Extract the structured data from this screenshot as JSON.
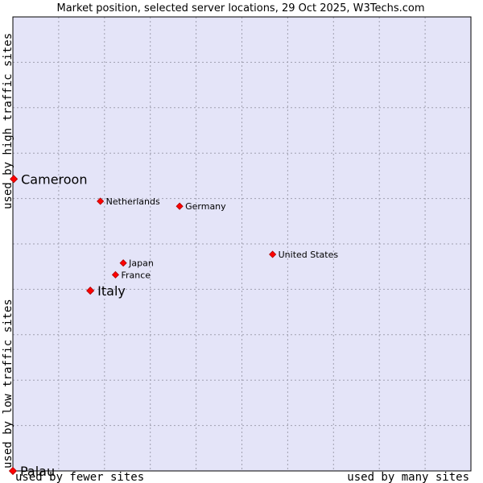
{
  "chart_data": {
    "type": "scatter",
    "title": "Market position, selected server locations, 29 Oct 2025, W3Techs.com",
    "xlabel_left": "used by fewer sites",
    "xlabel_right": "used by many sites",
    "ylabel_bottom": "used by low traffic sites",
    "ylabel_top": "used by high traffic sites",
    "xlim": [
      0,
      100
    ],
    "ylim": [
      0,
      100
    ],
    "grid": true,
    "colors": {
      "plot_bg": "#e4e4f8",
      "point": "#ff0000",
      "point_stroke": "#aa0000",
      "border": "#000000"
    },
    "points": [
      {
        "label": "Cameroon",
        "x": 0.2,
        "y": 64.3,
        "size": "large"
      },
      {
        "label": "Netherlands",
        "x": 19.1,
        "y": 59.4,
        "size": "small"
      },
      {
        "label": "Germany",
        "x": 36.4,
        "y": 58.3,
        "size": "small"
      },
      {
        "label": "United States",
        "x": 56.7,
        "y": 47.7,
        "size": "small"
      },
      {
        "label": "Japan",
        "x": 24.1,
        "y": 45.8,
        "size": "small"
      },
      {
        "label": "France",
        "x": 22.4,
        "y": 43.2,
        "size": "small"
      },
      {
        "label": "Italy",
        "x": 16.9,
        "y": 39.7,
        "size": "large"
      },
      {
        "label": "Palau",
        "x": 0,
        "y": 0,
        "size": "large"
      }
    ]
  }
}
